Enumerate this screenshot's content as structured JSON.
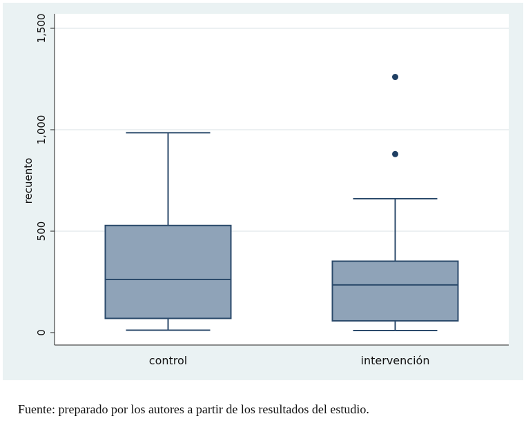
{
  "chart_data": {
    "type": "box",
    "title": "",
    "xlabel": "",
    "ylabel": "recuento",
    "ylim": [
      0,
      1500
    ],
    "yticks": [
      0,
      500,
      1000,
      1500
    ],
    "ytick_labels": [
      "0",
      "500",
      "1,000",
      "1,500"
    ],
    "grid": true,
    "categories": [
      "control",
      "intervención"
    ],
    "boxes": [
      {
        "category": "control",
        "whisker_low": 12,
        "q1": 70,
        "median": 262,
        "q3": 528,
        "whisker_high": 985,
        "outliers": []
      },
      {
        "category": "intervención",
        "whisker_low": 10,
        "q1": 58,
        "median": 235,
        "q3": 352,
        "whisker_high": 660,
        "outliers": [
          880,
          1260
        ]
      }
    ],
    "colors": {
      "box_fill": "#8fa3b8",
      "box_stroke": "#2b4a6b",
      "outlier": "#1f3f63",
      "grid": "#e6ecee",
      "plot_bg": "#ffffff",
      "panel_bg": "#eaf2f3"
    }
  },
  "caption": "Fuente: preparado por los autores a partir de los resultados del estudio."
}
